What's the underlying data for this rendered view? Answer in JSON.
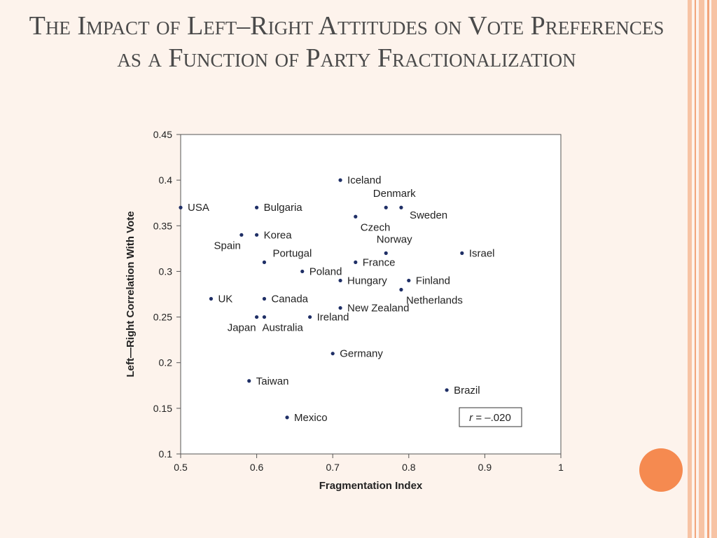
{
  "slide": {
    "title": "The Impact of Left–Right Attitudes on Vote Preferences as a Function of Party Fractionalization"
  },
  "colors": {
    "background": "#fdf3ec",
    "accent": "#f58a50",
    "stripe_light": "#f7c3a4",
    "point": "#1f2f66"
  },
  "chart_data": {
    "type": "scatter",
    "title": "",
    "xlabel": "Fragmentation Index",
    "ylabel": "Left—Right Correlation With Vote",
    "xlim": [
      0.5,
      1
    ],
    "ylim": [
      0.1,
      0.45
    ],
    "xticks": [
      "0.5",
      "0.6",
      "0.7",
      "0.8",
      "0.9",
      "1"
    ],
    "yticks": [
      "0.1",
      "0.15",
      "0.2",
      "0.25",
      "0.3",
      "0.35",
      "0.4",
      "0.45"
    ],
    "grid": false,
    "annotation": {
      "prefix": "r",
      "value": " = –.020"
    },
    "points": [
      {
        "label": "Iceland",
        "x": 0.71,
        "y": 0.4,
        "side": "right"
      },
      {
        "label": "Denmark",
        "x": 0.77,
        "y": 0.37,
        "side": "above"
      },
      {
        "label": "Sweden",
        "x": 0.79,
        "y": 0.37,
        "side": "right-low"
      },
      {
        "label": "USA",
        "x": 0.5,
        "y": 0.37,
        "side": "right"
      },
      {
        "label": "Bulgaria",
        "x": 0.6,
        "y": 0.37,
        "side": "right"
      },
      {
        "label": "Czech",
        "x": 0.73,
        "y": 0.36,
        "side": "below-right"
      },
      {
        "label": "Spain",
        "x": 0.58,
        "y": 0.34,
        "side": "below-left"
      },
      {
        "label": "Korea",
        "x": 0.6,
        "y": 0.34,
        "side": "right"
      },
      {
        "label": "Norway",
        "x": 0.77,
        "y": 0.32,
        "side": "above"
      },
      {
        "label": "Israel",
        "x": 0.87,
        "y": 0.32,
        "side": "right"
      },
      {
        "label": "Portugal",
        "x": 0.61,
        "y": 0.31,
        "side": "above-right"
      },
      {
        "label": "France",
        "x": 0.73,
        "y": 0.31,
        "side": "right"
      },
      {
        "label": "Poland",
        "x": 0.66,
        "y": 0.3,
        "side": "right"
      },
      {
        "label": "Hungary",
        "x": 0.71,
        "y": 0.29,
        "side": "right"
      },
      {
        "label": "Finland",
        "x": 0.8,
        "y": 0.29,
        "side": "right"
      },
      {
        "label": "Netherlands",
        "x": 0.79,
        "y": 0.28,
        "side": "below-right"
      },
      {
        "label": "UK",
        "x": 0.54,
        "y": 0.27,
        "side": "right"
      },
      {
        "label": "Canada",
        "x": 0.61,
        "y": 0.27,
        "side": "right"
      },
      {
        "label": "New Zealand",
        "x": 0.71,
        "y": 0.26,
        "side": "right"
      },
      {
        "label": "Japan",
        "x": 0.6,
        "y": 0.25,
        "side": "below-left"
      },
      {
        "label": "Australia",
        "x": 0.61,
        "y": 0.25,
        "side": "below-left2"
      },
      {
        "label": "Ireland",
        "x": 0.67,
        "y": 0.25,
        "side": "right"
      },
      {
        "label": "Germany",
        "x": 0.7,
        "y": 0.21,
        "side": "right"
      },
      {
        "label": "Taiwan",
        "x": 0.59,
        "y": 0.18,
        "side": "right"
      },
      {
        "label": "Brazil",
        "x": 0.85,
        "y": 0.17,
        "side": "right"
      },
      {
        "label": "Mexico",
        "x": 0.64,
        "y": 0.14,
        "side": "right"
      }
    ]
  }
}
